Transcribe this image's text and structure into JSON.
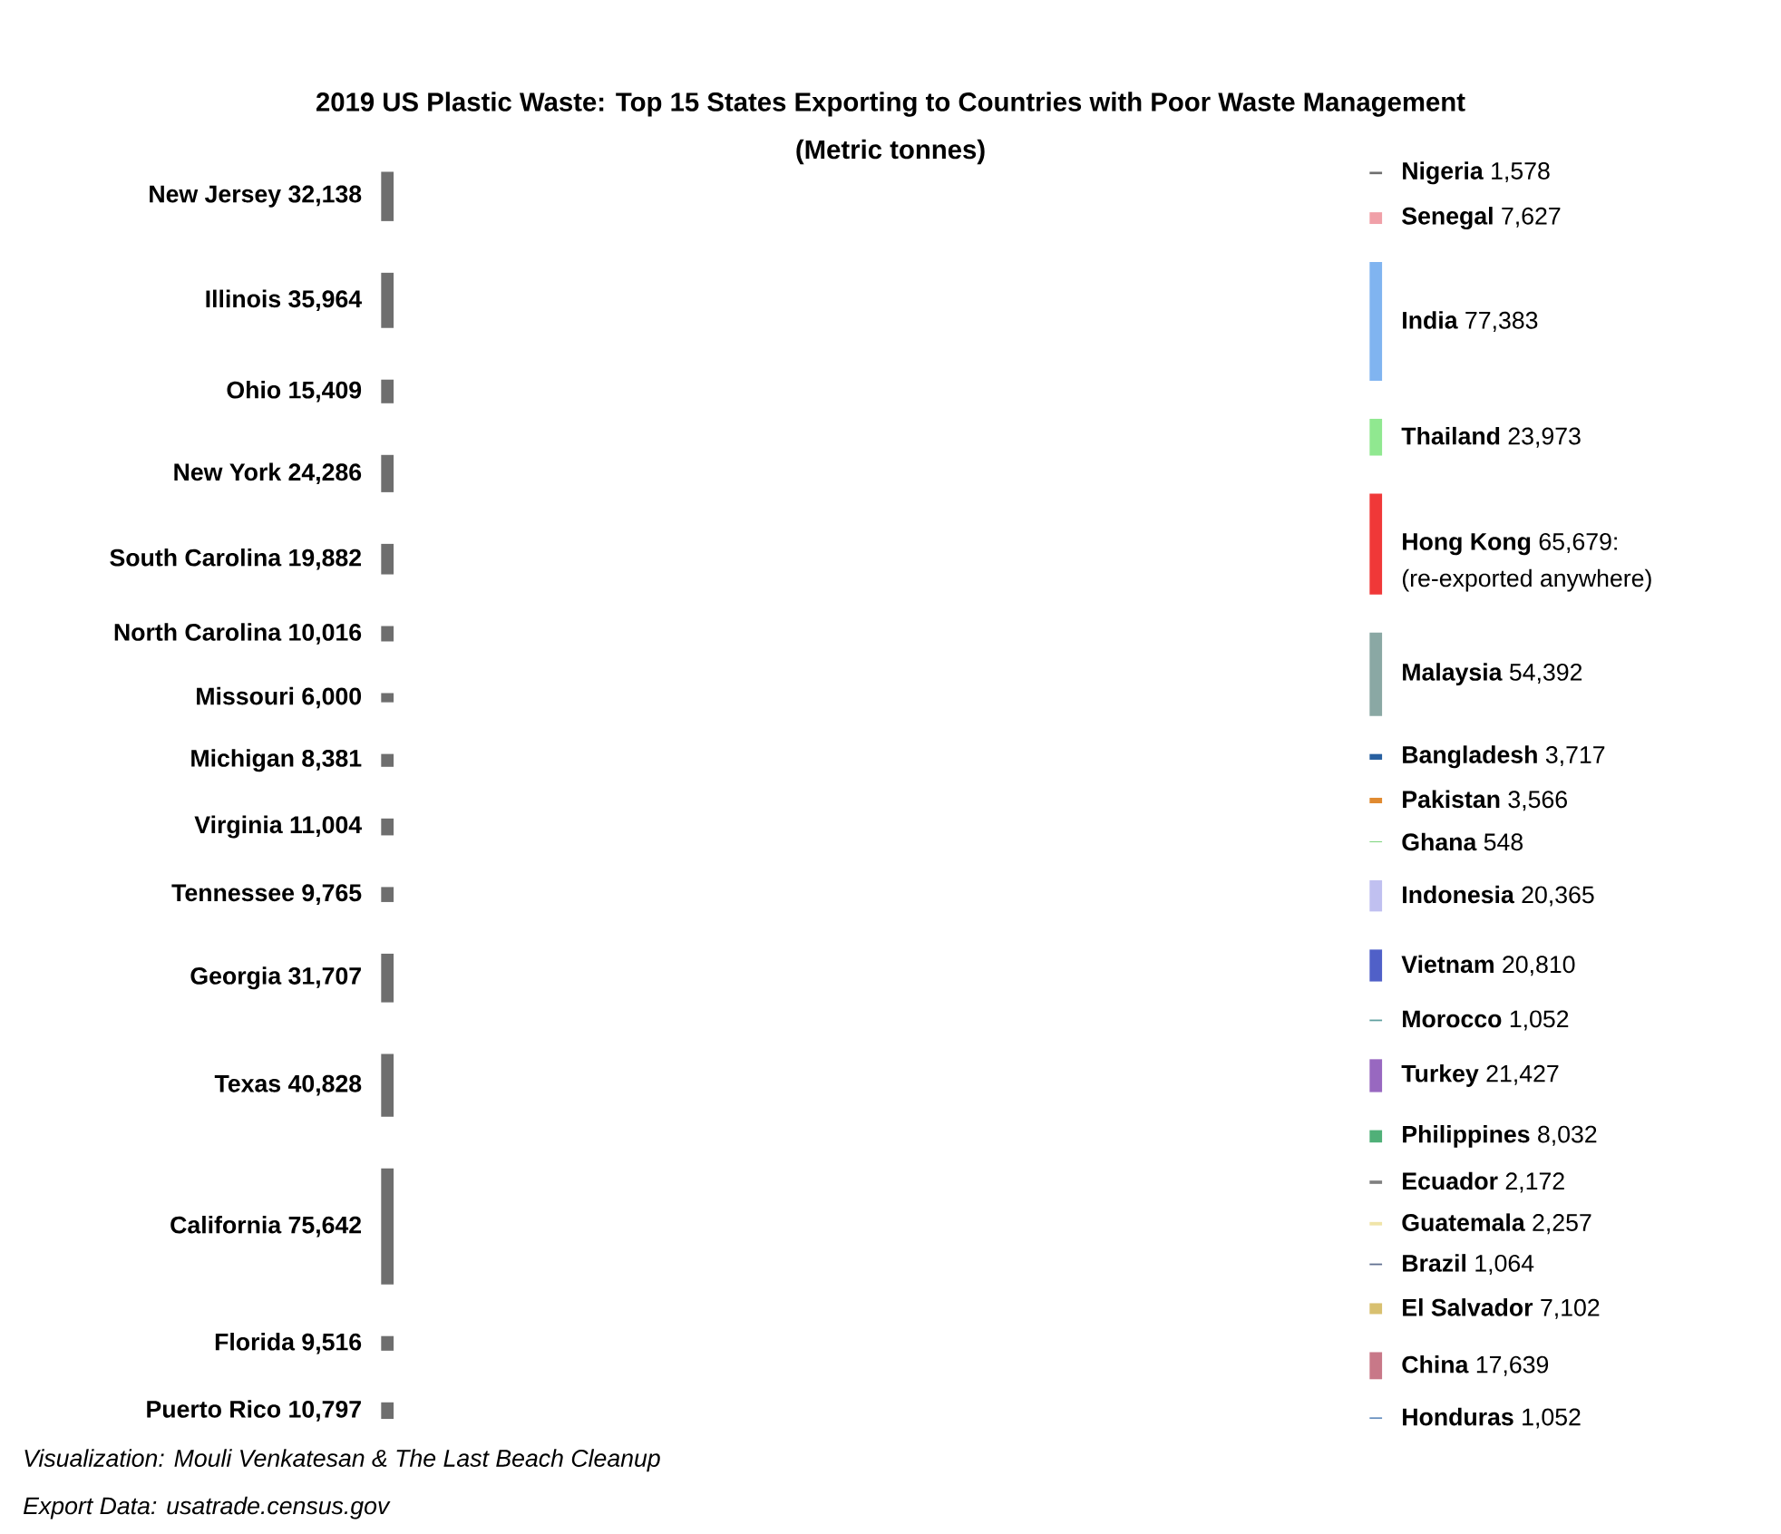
{
  "chart_data": [
    {
      "type": "other",
      "title": "2019 US Plastic Waste: Top 15 States Exporting to Countries with Poor Waste Management",
      "subtitle": "(Metric tonnes)",
      "categories": [
        "New Jersey",
        "Illinois",
        "Ohio",
        "New York",
        "South Carolina",
        "North Carolina",
        "Missouri",
        "Michigan",
        "Virginia",
        "Tennessee",
        "Georgia",
        "Texas",
        "California",
        "Florida",
        "Puerto Rico"
      ],
      "values": [
        32138,
        35964,
        15409,
        24286,
        19882,
        10016,
        6000,
        8381,
        11004,
        9765,
        31707,
        40828,
        75642,
        9516,
        10797
      ],
      "value_labels": [
        "32,138",
        "35,964",
        "15,409",
        "24,286",
        "19,882",
        "10,016",
        "6,000",
        "8,381",
        "11,004",
        "9,765",
        "31,707",
        "40,828",
        "75,642",
        "9,516",
        "10,797"
      ],
      "color": "#6e6e6e",
      "annotations": [
        "Visualization: Mouli Venkatesan & The Last Beach Cleanup",
        "Export Data: usatrade.census.gov"
      ]
    },
    {
      "type": "other",
      "categories": [
        "Nigeria",
        "Senegal",
        "India",
        "Thailand",
        "Hong Kong",
        "Malaysia",
        "Bangladesh",
        "Pakistan",
        "Ghana",
        "Indonesia",
        "Vietnam",
        "Morocco",
        "Turkey",
        "Philippines",
        "Ecuador",
        "Guatemala",
        "Brazil",
        "El Salvador",
        "China",
        "Honduras"
      ],
      "values": [
        1578,
        7627,
        77383,
        23973,
        65679,
        54392,
        3717,
        3566,
        548,
        20365,
        20810,
        1052,
        21427,
        8032,
        2172,
        2257,
        1064,
        7102,
        17639,
        1052
      ],
      "value_labels": [
        "1,578",
        "7,627",
        "77,383",
        "23,973",
        "65,679:",
        "54,392",
        "3,717",
        "3,566",
        "548",
        "20,365",
        "20,810",
        "1,052",
        "21,427",
        "8,032",
        "2,172",
        "2,257",
        "1,064",
        "7,102",
        "17,639",
        "1,052"
      ],
      "colors": [
        "#707070",
        "#f0a0a8",
        "#80b4f0",
        "#90e890",
        "#f03838",
        "#8aa8a4",
        "#2860a0",
        "#e08a30",
        "#70d070",
        "#c0c0f0",
        "#5060c8",
        "#60a0a0",
        "#9868c0",
        "#50b078",
        "#808080",
        "#f0e4a8",
        "#607090",
        "#d8c070",
        "#c87888",
        "#6890c0"
      ],
      "annotations": [
        {
          "text": "(re-exported anywhere)",
          "y": "Hong Kong"
        }
      ]
    }
  ]
}
